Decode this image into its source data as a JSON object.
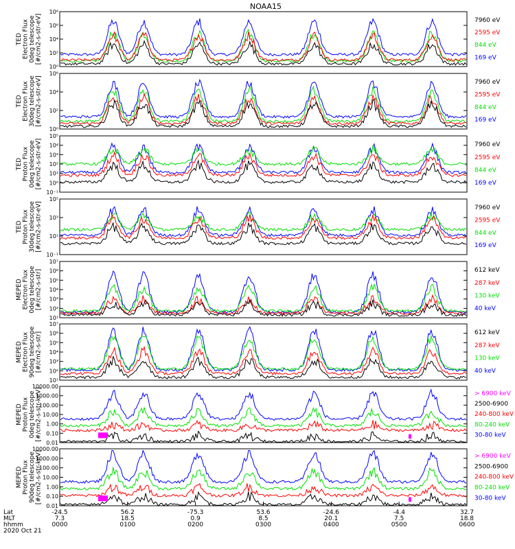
{
  "title": "NOAA15",
  "colors": {
    "black": "#000000",
    "red": "#ff0000",
    "green": "#00e000",
    "blue": "#0000ff",
    "magenta": "#ff00ff"
  },
  "chart_data": [
    {
      "type": "line",
      "scale": "log",
      "ylabel": [
        "TED",
        "Electron Flux",
        "0deg telescope",
        "[#/cm2-s-str-eV]"
      ],
      "yticks": [
        "10⁰",
        "10²",
        "10⁴",
        "10⁶",
        "10⁸"
      ],
      "ylim": [
        1,
        100000000
      ],
      "legend": [
        {
          "label": "7960 eV",
          "color": "black"
        },
        {
          "label": "2595 eV",
          "color": "red"
        },
        {
          "label": "844 eV",
          "color": "green"
        },
        {
          "label": "169 eV",
          "color": "blue"
        }
      ]
    },
    {
      "type": "line",
      "scale": "log",
      "ylabel": [
        "TED",
        "Electron Flux",
        "30deg telescope",
        "[#/cm2-s-str-eV]"
      ],
      "yticks": [
        "10⁰",
        "10²",
        "10⁴",
        "10⁶"
      ],
      "ylim": [
        1,
        1000000
      ],
      "legend": [
        {
          "label": "7960 eV",
          "color": "black"
        },
        {
          "label": "2595 eV",
          "color": "red"
        },
        {
          "label": "844 eV",
          "color": "green"
        },
        {
          "label": "169 eV",
          "color": "blue"
        }
      ]
    },
    {
      "type": "line",
      "scale": "log",
      "ylabel": [
        "TED",
        "Proton Flux",
        "0deg telescope",
        "[#/cm2-s-str-eV]"
      ],
      "yticks": [
        "10⁻¹",
        "10⁰",
        "10¹",
        "10²",
        "10³",
        "10⁴",
        "10⁵"
      ],
      "ylim": [
        0.1,
        100000
      ],
      "legend": [
        {
          "label": "7960 eV",
          "color": "black"
        },
        {
          "label": "2595 eV",
          "color": "red"
        },
        {
          "label": "844 eV",
          "color": "green"
        },
        {
          "label": "169 eV",
          "color": "blue"
        }
      ]
    },
    {
      "type": "line",
      "scale": "log",
      "ylabel": [
        "TED",
        "Proton Flux",
        "30deg telescope",
        "[#/cm2-s-str-eV]"
      ],
      "yticks": [
        "10⁻¹",
        "10¹",
        "10³",
        "10⁵"
      ],
      "ylim": [
        0.1,
        100000
      ],
      "legend": [
        {
          "label": "7960 eV",
          "color": "black"
        },
        {
          "label": "2595 eV",
          "color": "red"
        },
        {
          "label": "844 eV",
          "color": "green"
        },
        {
          "label": "169 eV",
          "color": "blue"
        }
      ]
    },
    {
      "type": "line",
      "scale": "log",
      "ylabel": [
        "MEPED",
        "Electron Flux",
        "0deg telescope",
        "[#/cm2-s-str]"
      ],
      "yticks": [
        "10¹",
        "10²",
        "10³",
        "10⁴",
        "10⁵",
        "10⁶",
        "10⁷"
      ],
      "ylim": [
        10,
        10000000
      ],
      "legend": [
        {
          "label": "612 keV",
          "color": "black"
        },
        {
          "label": "287 keV",
          "color": "red"
        },
        {
          "label": "130 keV",
          "color": "green"
        },
        {
          "label": "40 keV",
          "color": "blue"
        }
      ]
    },
    {
      "type": "line",
      "scale": "log",
      "ylabel": [
        "MEPED",
        "Electron Flux",
        "90deg telescope",
        "[#/cm2-s-str]"
      ],
      "yticks": [
        "10¹",
        "10²",
        "10³",
        "10⁴",
        "10⁵",
        "10⁶",
        "10⁷"
      ],
      "ylim": [
        10,
        10000000
      ],
      "legend": [
        {
          "label": "612 keV",
          "color": "black"
        },
        {
          "label": "287 keV",
          "color": "red"
        },
        {
          "label": "130 keV",
          "color": "green"
        },
        {
          "label": "40 keV",
          "color": "blue"
        }
      ]
    },
    {
      "type": "line",
      "scale": "log",
      "ylabel": [
        "MEPED",
        "Proton Flux",
        "0deg telescope",
        "[#/cm2-s-str-keV]"
      ],
      "yticks": [
        "0.01",
        "0.10",
        "1.00",
        "10.00",
        "100.00",
        "1000.00",
        "10000.00"
      ],
      "ylim": [
        0.01,
        10000
      ],
      "legend": [
        {
          "label": "> 6900 keV",
          "color": "magenta"
        },
        {
          "label": "2500-6900",
          "color": "black"
        },
        {
          "label": "240-800 keV",
          "color": "red"
        },
        {
          "label": "80-240 keV",
          "color": "green"
        },
        {
          "label": "30-80 keV",
          "color": "blue"
        }
      ]
    },
    {
      "type": "line",
      "scale": "log",
      "ylabel": [
        "MEPED",
        "Proton Flux",
        "90deg telescope",
        "[#/cm2-s-str-keV]"
      ],
      "yticks": [
        "0.01",
        "0.10",
        "1.00",
        "10.00",
        "100.00",
        "1000.00",
        "10000.00"
      ],
      "ylim": [
        0.01,
        10000
      ],
      "legend": [
        {
          "label": "> 6900 keV",
          "color": "magenta"
        },
        {
          "label": "2500-6900",
          "color": "black"
        },
        {
          "label": "240-800 keV",
          "color": "red"
        },
        {
          "label": "80-240 keV",
          "color": "green"
        },
        {
          "label": "30-80 keV",
          "color": "blue"
        }
      ]
    }
  ],
  "xaxis": {
    "row_labels": [
      "Lat",
      "MLT",
      "hhmm"
    ],
    "date": "2020 Oct 21",
    "ticks": [
      {
        "lat": "-24.5",
        "mlt": "7.3",
        "hhmm": "0000"
      },
      {
        "lat": "56.2",
        "mlt": "18.5",
        "hhmm": "0100"
      },
      {
        "lat": "-75.3",
        "mlt": "0.9",
        "hhmm": "0200"
      },
      {
        "lat": "53.6",
        "mlt": "8.5",
        "hhmm": "0300"
      },
      {
        "lat": "-24.6",
        "mlt": "20.1",
        "hhmm": "0400"
      },
      {
        "lat": "-4.4",
        "mlt": "7.5",
        "hhmm": "0500"
      },
      {
        "lat": "32.7",
        "mlt": "18.8",
        "hhmm": "0600"
      }
    ]
  }
}
